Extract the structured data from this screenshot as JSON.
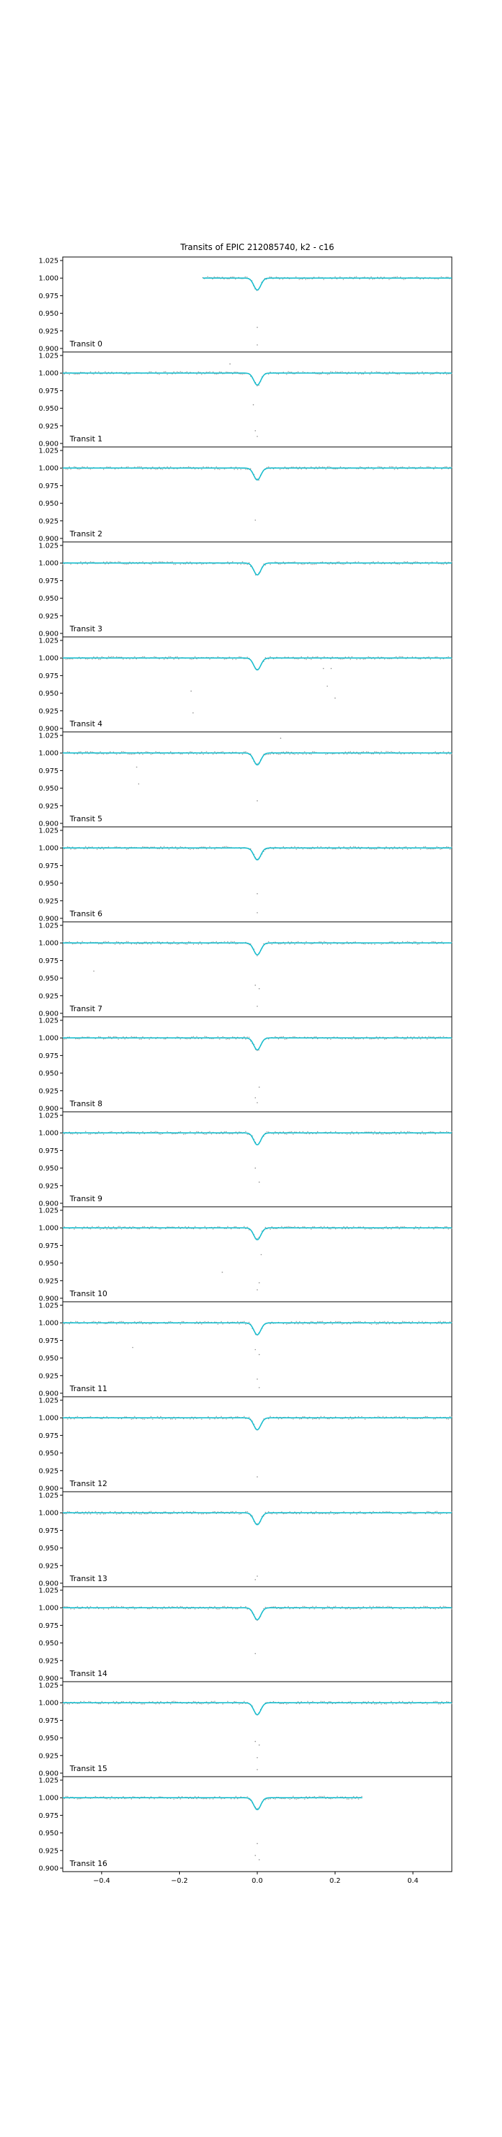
{
  "chart_data": {
    "type": "scatter",
    "title": "Transits of EPIC 212085740, k2 - c16",
    "xlim": [
      -0.5,
      0.5
    ],
    "ylim": [
      0.895,
      1.03
    ],
    "xticks": [
      "−0.4",
      "−0.2",
      "0.0",
      "0.2",
      "0.4"
    ],
    "xtick_values": [
      -0.4,
      -0.2,
      0.0,
      0.2,
      0.4
    ],
    "yticks": [
      "0.900",
      "0.925",
      "0.950",
      "0.975",
      "1.000",
      "1.025"
    ],
    "ytick_values": [
      0.9,
      0.925,
      0.95,
      0.975,
      1.0,
      1.025
    ],
    "grid": false,
    "colors": {
      "data_points": "#8a8a8a",
      "model": "#17becf",
      "axes": "#000000"
    },
    "model": {
      "baseline": 1.0,
      "depth": 0.017,
      "width": 0.009
    },
    "panels": [
      {
        "label": "Transit 0",
        "x_range": [
          -0.14,
          0.5
        ],
        "outliers": [
          [
            0.0,
            0.905
          ],
          [
            0.0,
            0.93
          ]
        ]
      },
      {
        "label": "Transit 1",
        "x_range": [
          -0.5,
          0.5
        ],
        "outliers": [
          [
            -0.07,
            1.013
          ],
          [
            -0.01,
            0.955
          ],
          [
            -0.005,
            0.918
          ],
          [
            0.0,
            0.91
          ]
        ]
      },
      {
        "label": "Transit 2",
        "x_range": [
          -0.5,
          0.5
        ],
        "outliers": [
          [
            -0.005,
            0.926
          ]
        ]
      },
      {
        "label": "Transit 3",
        "x_range": [
          -0.5,
          0.5
        ],
        "outliers": []
      },
      {
        "label": "Transit 4",
        "x_range": [
          -0.5,
          0.5
        ],
        "outliers": [
          [
            -0.17,
            0.953
          ],
          [
            -0.165,
            0.922
          ],
          [
            0.17,
            0.985
          ],
          [
            0.19,
            0.985
          ],
          [
            0.18,
            0.96
          ],
          [
            0.2,
            0.943
          ]
        ]
      },
      {
        "label": "Transit 5",
        "x_range": [
          -0.5,
          0.5
        ],
        "outliers": [
          [
            0.06,
            1.021
          ],
          [
            -0.31,
            0.98
          ],
          [
            -0.305,
            0.956
          ],
          [
            0.0,
            0.932
          ]
        ]
      },
      {
        "label": "Transit 6",
        "x_range": [
          -0.5,
          0.5
        ],
        "outliers": [
          [
            0.0,
            0.935
          ],
          [
            0.0,
            0.908
          ]
        ]
      },
      {
        "label": "Transit 7",
        "x_range": [
          -0.5,
          0.5
        ],
        "outliers": [
          [
            -0.42,
            0.96
          ],
          [
            -0.005,
            0.94
          ],
          [
            0.005,
            0.935
          ],
          [
            0.0,
            0.91
          ]
        ]
      },
      {
        "label": "Transit 8",
        "x_range": [
          -0.5,
          0.5
        ],
        "outliers": [
          [
            0.005,
            0.93
          ],
          [
            -0.005,
            0.915
          ],
          [
            0.0,
            0.908
          ]
        ]
      },
      {
        "label": "Transit 9",
        "x_range": [
          -0.5,
          0.5
        ],
        "outliers": [
          [
            -0.005,
            0.95
          ],
          [
            0.005,
            0.93
          ]
        ]
      },
      {
        "label": "Transit 10",
        "x_range": [
          -0.5,
          0.5
        ],
        "outliers": [
          [
            0.01,
            0.962
          ],
          [
            -0.09,
            0.937
          ],
          [
            0.005,
            0.922
          ],
          [
            0.0,
            0.912
          ]
        ]
      },
      {
        "label": "Transit 11",
        "x_range": [
          -0.5,
          0.5
        ],
        "outliers": [
          [
            -0.32,
            0.965
          ],
          [
            -0.005,
            0.962
          ],
          [
            0.005,
            0.955
          ],
          [
            0.0,
            0.92
          ],
          [
            0.005,
            0.908
          ]
        ]
      },
      {
        "label": "Transit 12",
        "x_range": [
          -0.5,
          0.5
        ],
        "outliers": [
          [
            0.0,
            0.916
          ]
        ]
      },
      {
        "label": "Transit 13",
        "x_range": [
          -0.5,
          0.5
        ],
        "outliers": [
          [
            0.0,
            0.91
          ],
          [
            -0.005,
            0.905
          ]
        ]
      },
      {
        "label": "Transit 14",
        "x_range": [
          -0.5,
          0.5
        ],
        "outliers": [
          [
            0.07,
            1.0
          ],
          [
            -0.005,
            0.935
          ]
        ]
      },
      {
        "label": "Transit 15",
        "x_range": [
          -0.5,
          0.5
        ],
        "outliers": [
          [
            -0.005,
            0.945
          ],
          [
            0.005,
            0.94
          ],
          [
            0.0,
            0.922
          ],
          [
            0.0,
            0.905
          ]
        ]
      },
      {
        "label": "Transit 16",
        "x_range": [
          -0.5,
          0.27
        ],
        "outliers": [
          [
            0.0,
            0.935
          ],
          [
            -0.005,
            0.918
          ],
          [
            0.005,
            0.912
          ]
        ]
      }
    ]
  }
}
